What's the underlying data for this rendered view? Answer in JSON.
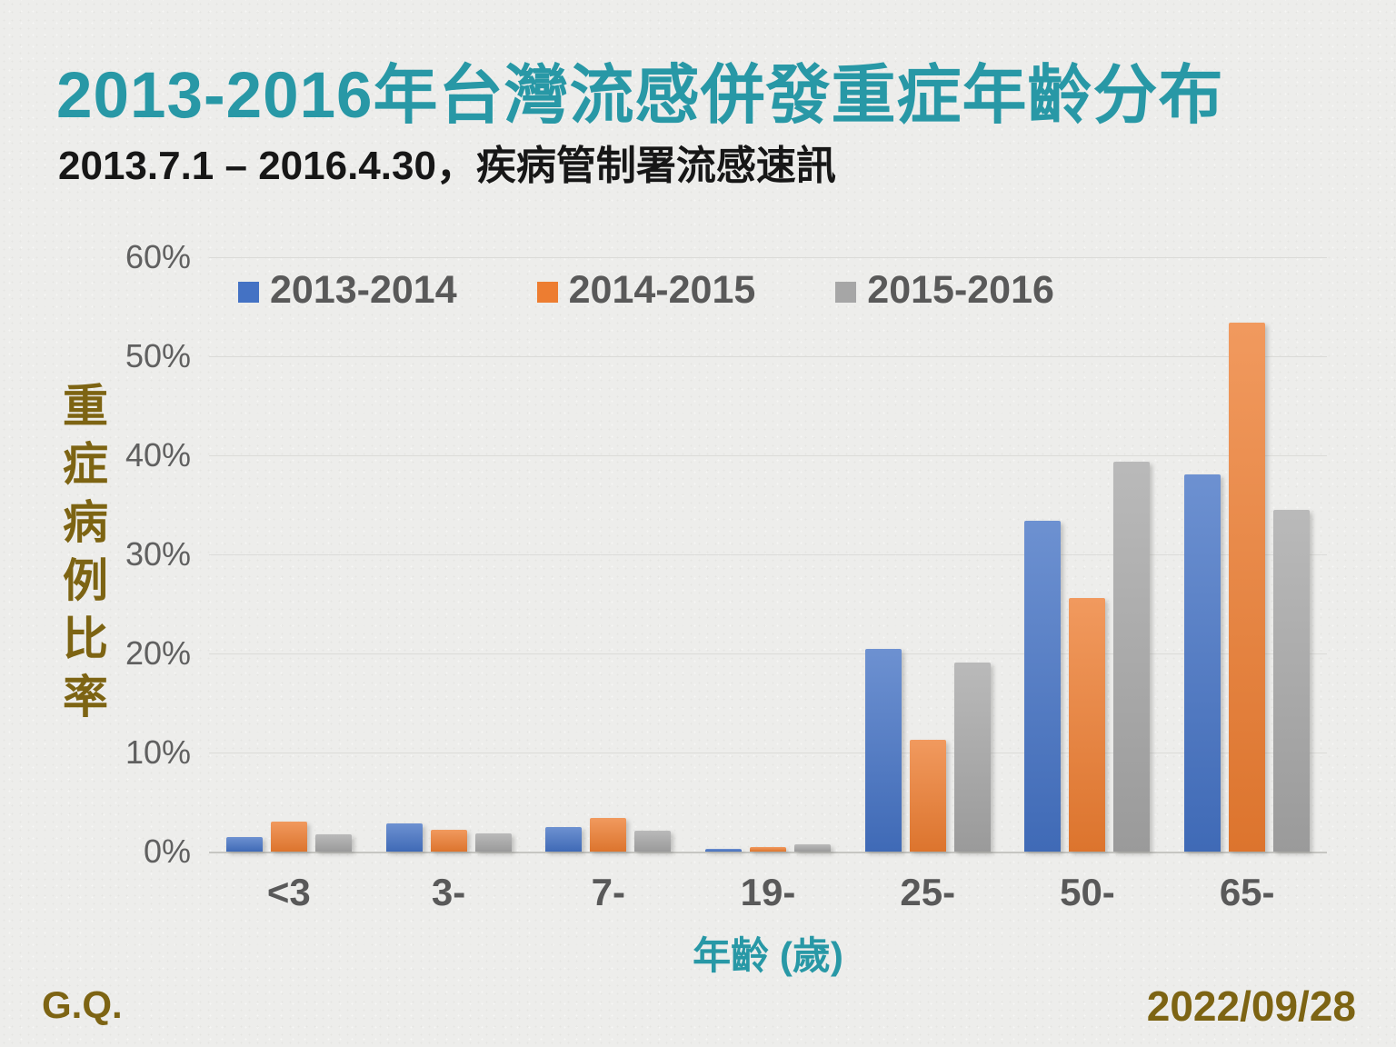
{
  "header": {
    "title": "2013-2016年台灣流感併發重症年齡分布",
    "subtitle": "2013.7.1 – 2016.4.30，疾病管制署流感速訊"
  },
  "chart_data": {
    "type": "bar",
    "title": "2013-2016年台灣流感併發重症年齡分布",
    "categories": [
      "<3",
      "3-",
      "7-",
      "19-",
      "25-",
      "50-",
      "65-"
    ],
    "series": [
      {
        "name": "2013-2014",
        "color": "#4472C4",
        "values": [
          1.5,
          2.8,
          2.5,
          0.3,
          20.5,
          33.4,
          38.1
        ]
      },
      {
        "name": "2014-2015",
        "color": "#ED7D31",
        "values": [
          3.0,
          2.2,
          3.4,
          0.5,
          11.3,
          25.6,
          53.4
        ]
      },
      {
        "name": "2015-2016",
        "color": "#A6A6A6",
        "values": [
          1.7,
          1.8,
          2.1,
          0.7,
          19.1,
          39.4,
          34.5
        ]
      }
    ],
    "xlabel": "年齡 (歲)",
    "ylabel": "重症病例比率",
    "ylim": [
      0,
      60
    ],
    "yticks": [
      60,
      50,
      40,
      30,
      20,
      10,
      0
    ],
    "ytick_labels": [
      "60%",
      "50%",
      "40%",
      "30%",
      "20%",
      "10%",
      "0%"
    ],
    "grid": true,
    "legend_position": "top-inside"
  },
  "footer": {
    "left": "G.Q.",
    "right": "2022/09/28"
  },
  "colors": {
    "accent_teal": "#2898A6",
    "accent_olive": "#7D6413",
    "text_gray": "#595959",
    "grid_gray": "#DBDBD8",
    "background": "#EDEDEB"
  }
}
